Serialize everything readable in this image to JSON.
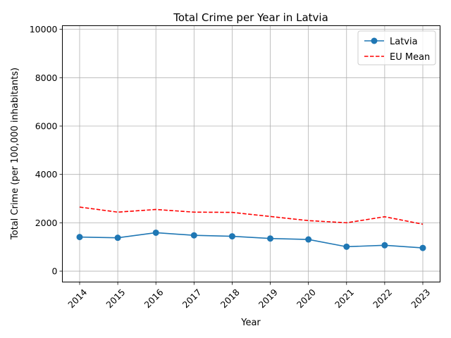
{
  "chart_data": {
    "type": "line",
    "title": "Total Crime per Year in Latvia",
    "xlabel": "Year",
    "ylabel": "Total Crime (per 100,000 inhabitants)",
    "x": [
      "2014",
      "2015",
      "2016",
      "2017",
      "2018",
      "2019",
      "2020",
      "2021",
      "2022",
      "2023"
    ],
    "yticks": [
      "0",
      "2000",
      "4000",
      "6000",
      "8000",
      "10000"
    ],
    "ylim": [
      -450,
      10150
    ],
    "grid": true,
    "legend_position": "top-right",
    "series": [
      {
        "name": "Latvia",
        "style": "solid-with-circle-markers",
        "color": "#1f77b4",
        "values": [
          1410,
          1380,
          1590,
          1480,
          1440,
          1350,
          1310,
          1010,
          1070,
          960
        ]
      },
      {
        "name": "EU Mean",
        "style": "dashed",
        "color": "#ff0000",
        "values": [
          2650,
          2440,
          2550,
          2440,
          2430,
          2260,
          2090,
          2000,
          2250,
          1940
        ]
      }
    ]
  }
}
